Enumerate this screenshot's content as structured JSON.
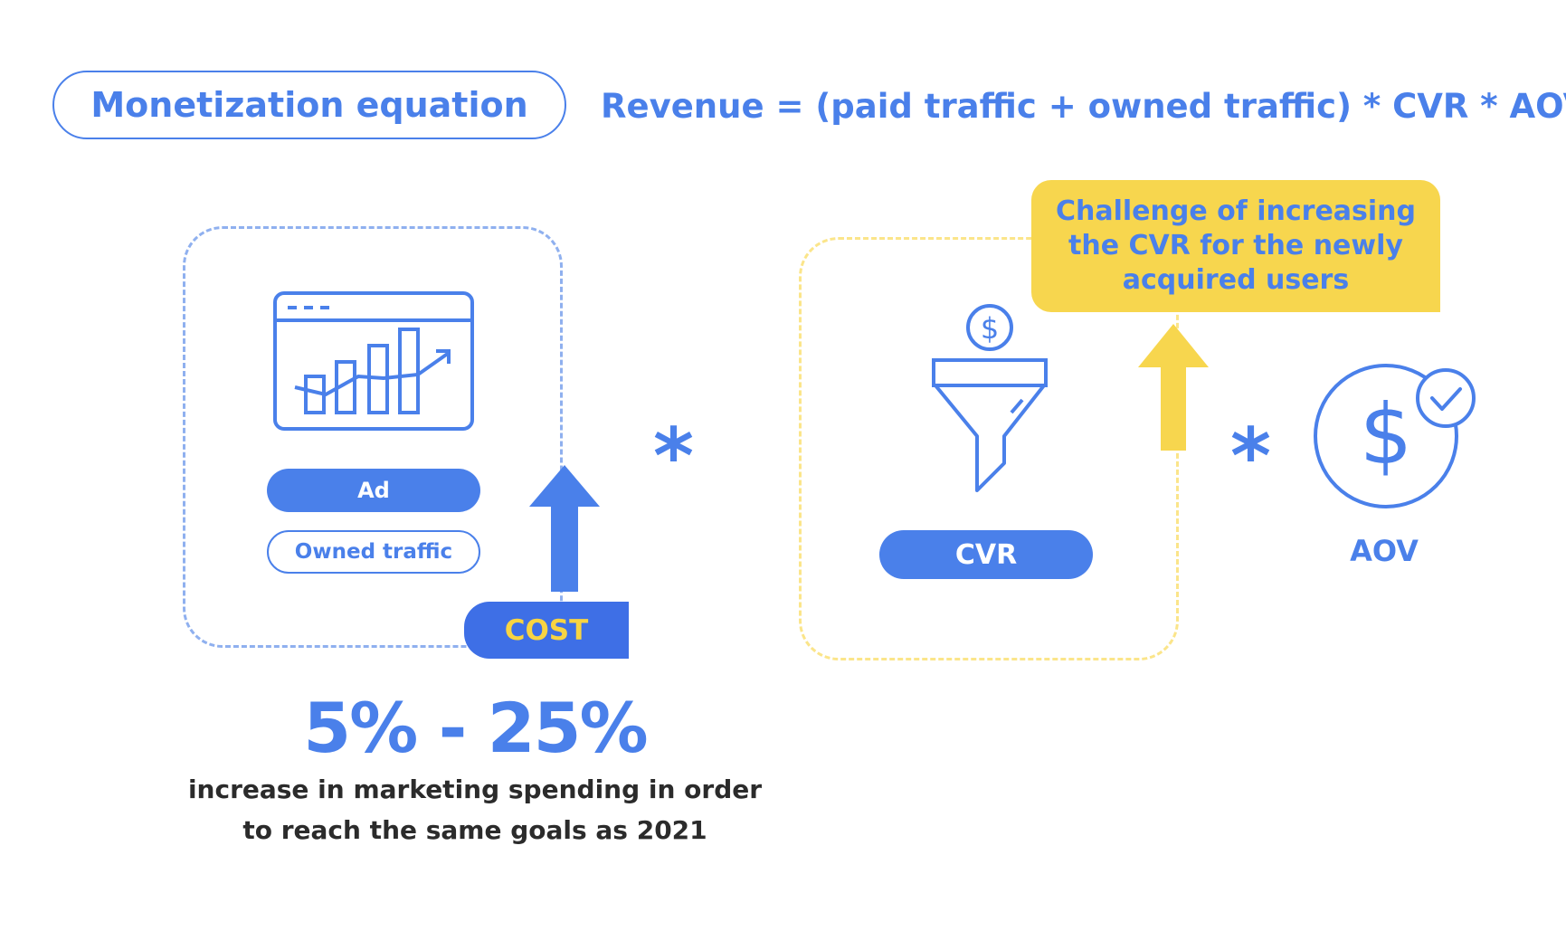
{
  "header": {
    "title": "Monetization equation",
    "equation": "Revenue = (paid traffic + owned traffic) * CVR * AOV"
  },
  "traffic": {
    "ad_label": "Ad",
    "owned_label": "Owned traffic",
    "icon": "bar-chart-browser-icon"
  },
  "cost": {
    "label": "COST"
  },
  "operators": {
    "multiply_1": "*",
    "multiply_2": "*"
  },
  "conversion": {
    "label": "CVR",
    "icon": "dollar-funnel-icon",
    "challenge": "Challenge of increasing the CVR for the newly acquired users"
  },
  "aov": {
    "label": "AOV",
    "icon": "dollar-check-icon"
  },
  "stat": {
    "range": "5% - 25%",
    "caption": "increase in marketing spending in order to reach the same goals as 2021"
  },
  "colors": {
    "blue": "#4a80ea",
    "cost_blue": "#3e6fe6",
    "yellow": "#f7d64e",
    "light_blue_dash": "#8fb0ef",
    "light_yellow_dash": "#fbe58a",
    "dark_text": "#2b2b2b"
  }
}
